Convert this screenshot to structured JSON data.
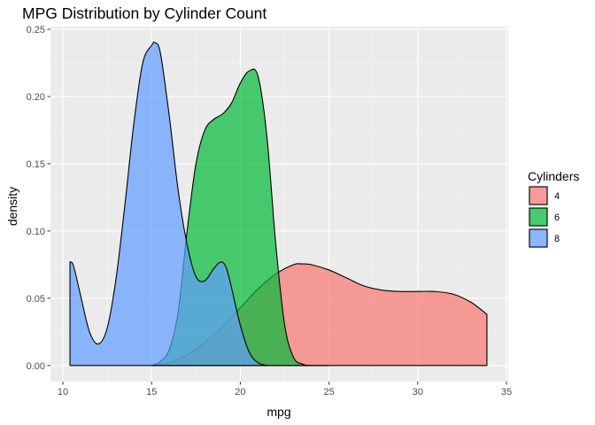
{
  "chart_data": {
    "type": "area",
    "title": "MPG Distribution by Cylinder Count",
    "xlabel": "mpg",
    "ylabel": "density",
    "xlim": [
      9.3,
      35.1
    ],
    "ylim": [
      -0.012,
      0.252
    ],
    "x_ticks": [
      10,
      15,
      20,
      25,
      30,
      35
    ],
    "y_ticks": [
      0.0,
      0.05,
      0.1,
      0.15,
      0.2,
      0.25
    ],
    "x_tick_labels": [
      "10",
      "15",
      "20",
      "25",
      "30",
      "35"
    ],
    "y_tick_labels": [
      "0.00",
      "0.05",
      "0.10",
      "0.15",
      "0.20",
      "0.25"
    ],
    "grid": true,
    "legend": {
      "title": "Cylinders",
      "position": "right"
    },
    "series": [
      {
        "name": "4",
        "color": "#F8766D",
        "x": [
          15.0,
          16.0,
          17.0,
          18.0,
          19.0,
          20.0,
          21.0,
          22.0,
          23.0,
          23.5,
          24.0,
          25.0,
          26.0,
          27.0,
          28.0,
          29.0,
          30.0,
          31.0,
          32.0,
          33.0,
          33.9
        ],
        "y": [
          0.0,
          0.002,
          0.008,
          0.017,
          0.029,
          0.043,
          0.057,
          0.068,
          0.075,
          0.0755,
          0.075,
          0.071,
          0.065,
          0.059,
          0.056,
          0.055,
          0.055,
          0.055,
          0.053,
          0.047,
          0.038
        ]
      },
      {
        "name": "6",
        "color": "#00BA38",
        "x": [
          15.0,
          15.5,
          16.0,
          16.5,
          17.0,
          17.5,
          18.0,
          18.5,
          19.0,
          19.5,
          20.0,
          20.5,
          21.0,
          21.5,
          22.0,
          22.5,
          23.0,
          23.5,
          24.0,
          25.0
        ],
        "y": [
          0.0,
          0.003,
          0.012,
          0.04,
          0.1,
          0.15,
          0.175,
          0.183,
          0.187,
          0.195,
          0.21,
          0.219,
          0.215,
          0.17,
          0.09,
          0.03,
          0.006,
          0.001,
          0.0,
          0.0
        ]
      },
      {
        "name": "8",
        "color": "#619CFF",
        "x": [
          10.4,
          10.6,
          11.0,
          11.5,
          12.0,
          12.5,
          13.0,
          13.5,
          14.0,
          14.5,
          15.0,
          15.2,
          15.5,
          16.0,
          16.5,
          17.0,
          17.5,
          18.0,
          18.5,
          18.9,
          19.2,
          19.5,
          20.0,
          20.5,
          21.0,
          21.5
        ],
        "y": [
          0.077,
          0.074,
          0.052,
          0.025,
          0.016,
          0.028,
          0.065,
          0.12,
          0.18,
          0.225,
          0.238,
          0.24,
          0.232,
          0.185,
          0.13,
          0.09,
          0.066,
          0.063,
          0.072,
          0.077,
          0.073,
          0.058,
          0.03,
          0.01,
          0.002,
          0.0
        ]
      }
    ]
  }
}
